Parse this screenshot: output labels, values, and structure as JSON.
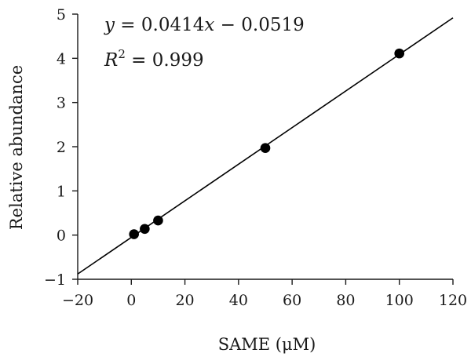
{
  "chart_data": {
    "type": "scatter",
    "title": "",
    "xlabel": "SAME (μM)",
    "ylabel": "Relative abundance",
    "xlim": [
      -20,
      120
    ],
    "ylim": [
      -1,
      5
    ],
    "xticks": [
      -20,
      0,
      20,
      40,
      60,
      80,
      100,
      120
    ],
    "yticks": [
      -1,
      0,
      1,
      2,
      3,
      4,
      5
    ],
    "grid": false,
    "series": [
      {
        "x": [
          1,
          5,
          10,
          50,
          100
        ],
        "y": [
          0.02,
          0.14,
          0.33,
          1.97,
          4.11
        ],
        "marker": "filled-circle",
        "color": "#000000"
      }
    ],
    "fit_line": {
      "slope": 0.0414,
      "intercept": -0.0519,
      "x_range": [
        -20,
        120
      ],
      "color": "#000000"
    },
    "annotations": {
      "equation": {
        "lhs": "y",
        "rhs1": " = 0.0414",
        "var": "x",
        "rhs2": " − 0.0519"
      },
      "r2": {
        "lhs": "R",
        "sup": "2",
        "rhs": " = 0.999"
      }
    }
  }
}
